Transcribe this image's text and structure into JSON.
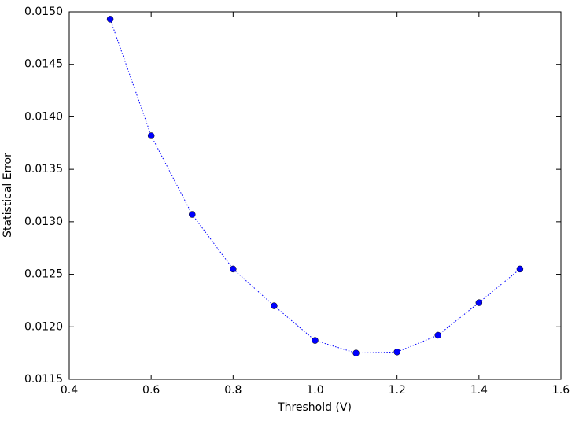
{
  "chart_data": {
    "type": "line",
    "x_label": "Threshold (V)",
    "y_label": "Statistical Error",
    "x": [
      0.5,
      0.6,
      0.7,
      0.8,
      0.9,
      1.0,
      1.1,
      1.2,
      1.3,
      1.4,
      1.5
    ],
    "series": [
      {
        "color": "#0000ff",
        "values": [
          0.01493,
          0.01382,
          0.01307,
          0.01255,
          0.0122,
          0.01187,
          0.01175,
          0.01176,
          0.01192,
          0.01223,
          0.01255
        ]
      }
    ],
    "xlim": [
      0.4,
      1.6
    ],
    "xticks": [
      0.4,
      0.6,
      0.8,
      {
        "value": 1,
        "label": "1.0"
      },
      1.2,
      1.4,
      1.6
    ],
    "ylim": [
      0.0115,
      0.015
    ],
    "yticks": [
      0.0115,
      {
        "value": 0.012,
        "label": "0.0120"
      },
      0.0125,
      {
        "value": 0.013,
        "label": "0.0130"
      },
      0.0135,
      {
        "value": 0.014,
        "label": "0.0140"
      },
      0.0145,
      {
        "value": 0.015,
        "label": "0.0150"
      }
    ]
  }
}
